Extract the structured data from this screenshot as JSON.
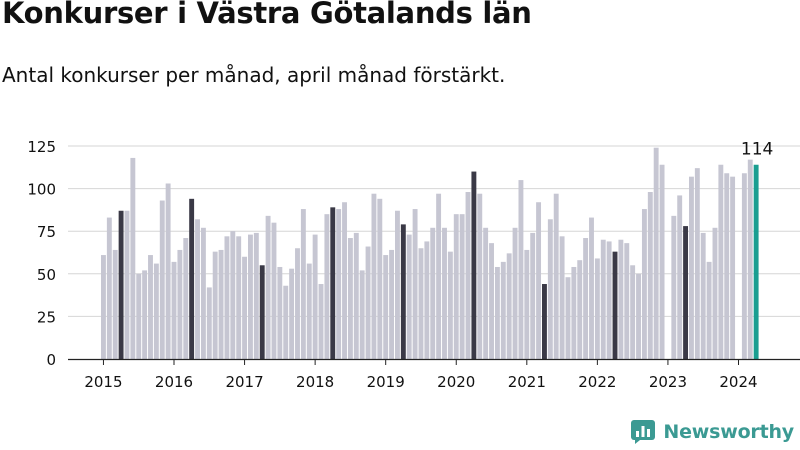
{
  "header": {
    "title": "Konkurser i Västra Götalands län",
    "subtitle": "Antal konkurser per månad, april månad förstärkt."
  },
  "brand": {
    "name": "Newsworthy"
  },
  "colors": {
    "bar_default": "#c6c6d2",
    "bar_april": "#3a3946",
    "bar_latest": "#1a9e91",
    "grid": "#d6d6d6",
    "axis": "#222222",
    "brand": "#3b9a93"
  },
  "chart_data": {
    "type": "bar",
    "title": "Konkurser i Västra Götalands län",
    "subtitle": "Antal konkurser per månad, april månad förstärkt.",
    "xlabel": "",
    "ylabel": "",
    "ylim": [
      0,
      125
    ],
    "yticks": [
      0,
      25,
      50,
      75,
      100,
      125
    ],
    "grid": true,
    "start": "2015-01",
    "year_ticks": [
      "2015",
      "2016",
      "2017",
      "2018",
      "2019",
      "2020",
      "2021",
      "2022",
      "2023",
      "2024"
    ],
    "highlight_month": 4,
    "latest_label": "114",
    "series": [
      {
        "values": [
          61,
          83,
          64,
          87,
          87,
          118,
          50,
          52,
          61,
          56,
          93,
          103,
          57,
          64,
          71,
          94,
          82,
          77,
          42,
          63,
          64,
          72,
          75,
          72,
          60,
          73,
          74,
          55,
          84,
          80,
          54,
          43,
          53,
          65,
          88,
          56,
          73,
          44,
          85,
          89,
          88,
          92,
          71,
          74,
          52,
          66,
          97,
          94,
          61,
          64,
          87,
          79,
          73,
          88,
          65,
          69,
          77,
          97,
          77,
          63,
          85,
          85,
          98,
          110,
          97,
          77,
          68,
          54,
          57,
          62,
          77,
          105,
          64,
          74,
          92,
          44,
          82,
          97,
          72,
          48,
          54,
          58,
          71,
          83,
          59,
          70,
          69,
          63,
          70,
          68,
          55,
          50,
          88,
          98,
          124,
          114,
          0,
          84,
          96,
          78,
          107,
          112,
          74,
          57,
          77,
          114,
          109,
          107,
          0,
          109,
          117,
          114
        ]
      }
    ]
  }
}
